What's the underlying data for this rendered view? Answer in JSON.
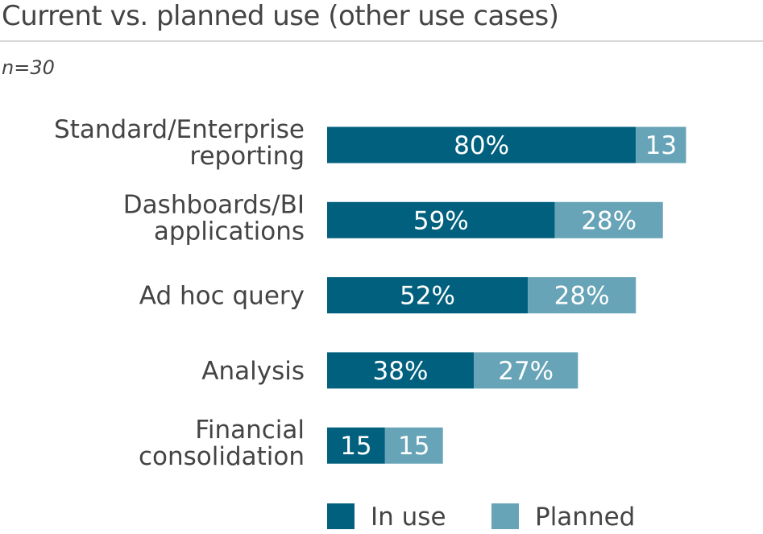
{
  "chart_data": {
    "type": "bar",
    "orientation": "horizontal",
    "stacked": true,
    "title": "Current vs. planned use (other use cases)",
    "subtitle": "n=30",
    "categories": [
      [
        "Standard/Enterprise",
        "reporting"
      ],
      [
        "Dashboards/BI",
        "applications"
      ],
      [
        "Ad hoc query"
      ],
      [
        "Analysis"
      ],
      [
        "Financial",
        "consolidation"
      ]
    ],
    "series": [
      {
        "name": "In use",
        "color": "#02607f",
        "values": [
          80,
          59,
          52,
          38,
          15
        ],
        "labels": [
          "80%",
          "59%",
          "52%",
          "38%",
          "15"
        ]
      },
      {
        "name": "Planned",
        "color": "#67a4b7",
        "values": [
          13,
          28,
          28,
          27,
          15
        ],
        "labels": [
          "13",
          "28%",
          "28%",
          "27%",
          "15"
        ]
      }
    ],
    "xlim": [
      0,
      100
    ],
    "grid": false,
    "legend_position": "bottom"
  }
}
